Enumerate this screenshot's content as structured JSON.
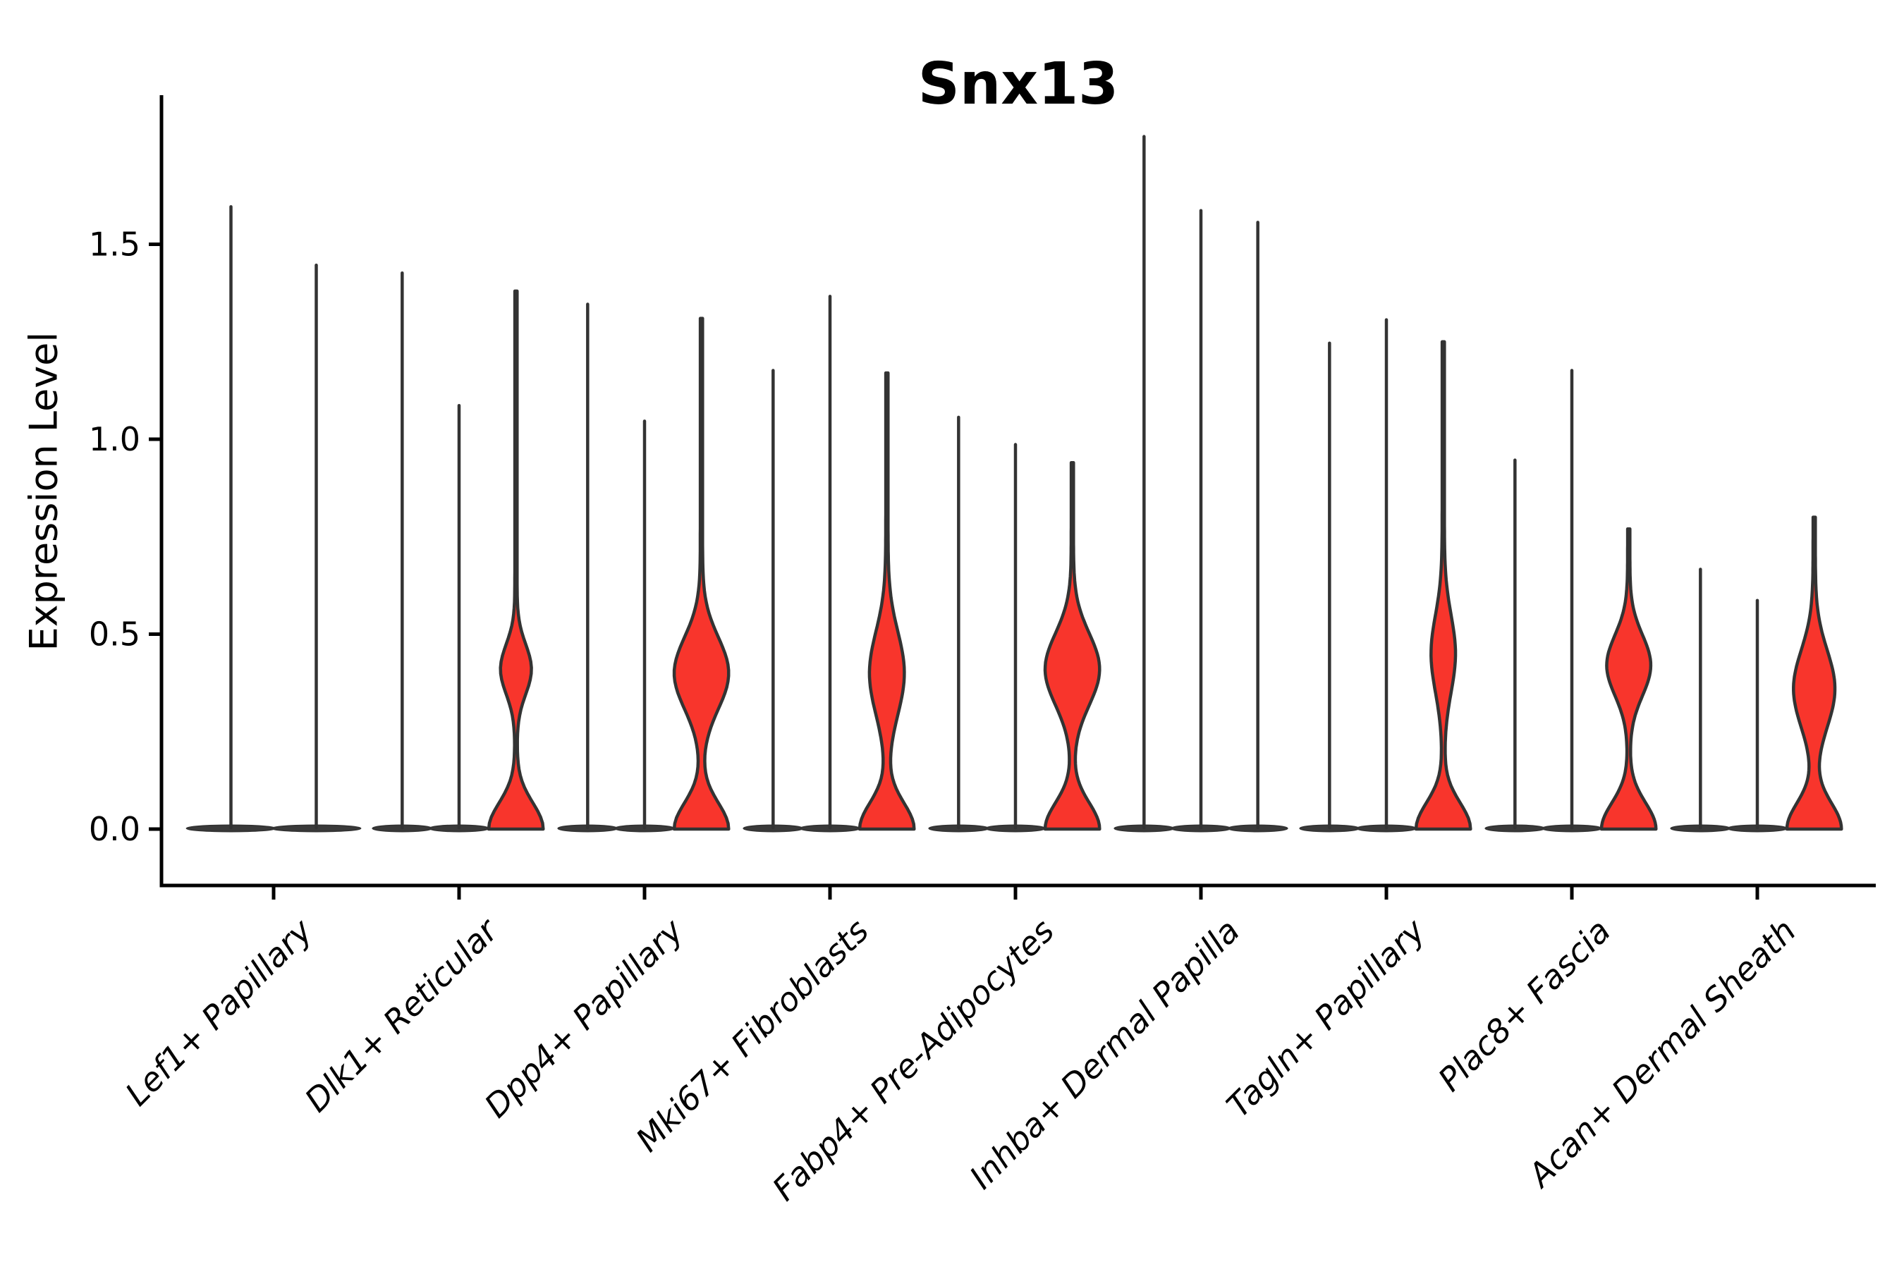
{
  "title": "Snx13",
  "y_axis": {
    "label": "Expression Level",
    "tick_labels": [
      "0.0",
      "0.5",
      "1.0",
      "1.5"
    ],
    "tick_values": [
      0.0,
      0.5,
      1.0,
      1.5
    ]
  },
  "colors": {
    "violin_fill_red": "#F8352C",
    "violin_outline": "#333333",
    "axis": "#000000",
    "background": "#ffffff"
  },
  "chart_data": {
    "type": "violin",
    "title": "Snx13",
    "xlabel": "",
    "ylabel": "Expression Level",
    "ylim": [
      0,
      1.87
    ],
    "yticks": [
      0.0,
      0.5,
      1.0,
      1.5
    ],
    "grid": false,
    "legend": "none",
    "description": "Stacked-spike violin plot of Snx13 expression per fibroblast cluster; most cells at 0 giving flat bases with thin max-spikes; one red-filled violin per group where a sub-population shows expression.",
    "groups": [
      {
        "label": "Lef1+ Papillary",
        "violins": [
          {
            "max": 1.6,
            "filled": false
          },
          {
            "max": 1.45,
            "filled": false
          }
        ]
      },
      {
        "label": "Dlk1+ Reticular",
        "violins": [
          {
            "max": 1.43,
            "filled": false
          },
          {
            "max": 1.09,
            "filled": false
          },
          {
            "max": 1.38,
            "filled": true,
            "bulge_center": 0.41,
            "bulge_spread": 0.09,
            "bulge_halfwidth_frac": 0.22
          }
        ]
      },
      {
        "label": "Dpp4+ Papillary",
        "violins": [
          {
            "max": 1.35,
            "filled": false
          },
          {
            "max": 1.05,
            "filled": false
          },
          {
            "max": 1.31,
            "filled": true,
            "bulge_center": 0.4,
            "bulge_spread": 0.13,
            "bulge_halfwidth_frac": 0.4
          }
        ]
      },
      {
        "label": "Mki67+ Fibroblasts",
        "violins": [
          {
            "max": 1.18,
            "filled": false
          },
          {
            "max": 1.37,
            "filled": false
          },
          {
            "max": 1.17,
            "filled": true,
            "bulge_center": 0.4,
            "bulge_spread": 0.15,
            "bulge_halfwidth_frac": 0.25
          }
        ]
      },
      {
        "label": "Fabp4+ Pre-Adipocytes",
        "violins": [
          {
            "max": 1.06,
            "filled": false
          },
          {
            "max": 0.99,
            "filled": false
          },
          {
            "max": 0.94,
            "filled": true,
            "bulge_center": 0.41,
            "bulge_spread": 0.13,
            "bulge_halfwidth_frac": 0.4
          }
        ]
      },
      {
        "label": "Inhba+ Dermal Papilla",
        "violins": [
          {
            "max": 1.78,
            "filled": false
          },
          {
            "max": 1.59,
            "filled": false
          },
          {
            "max": 1.56,
            "filled": false
          }
        ]
      },
      {
        "label": "Tagln+ Papillary",
        "violins": [
          {
            "max": 1.25,
            "filled": false
          },
          {
            "max": 1.31,
            "filled": false
          },
          {
            "max": 1.25,
            "filled": true,
            "bulge_center": 0.45,
            "bulge_spread": 0.14,
            "bulge_halfwidth_frac": 0.17
          }
        ]
      },
      {
        "label": "Plac8+ Fascia",
        "violins": [
          {
            "max": 0.95,
            "filled": false
          },
          {
            "max": 1.18,
            "filled": false
          },
          {
            "max": 0.77,
            "filled": true,
            "bulge_center": 0.42,
            "bulge_spread": 0.11,
            "bulge_halfwidth_frac": 0.32
          }
        ]
      },
      {
        "label": "Acan+ Dermal Sheath",
        "violins": [
          {
            "max": 0.67,
            "filled": false
          },
          {
            "max": 0.59,
            "filled": false
          },
          {
            "max": 0.8,
            "filled": true,
            "bulge_center": 0.36,
            "bulge_spread": 0.14,
            "bulge_halfwidth_frac": 0.3
          }
        ]
      }
    ]
  }
}
